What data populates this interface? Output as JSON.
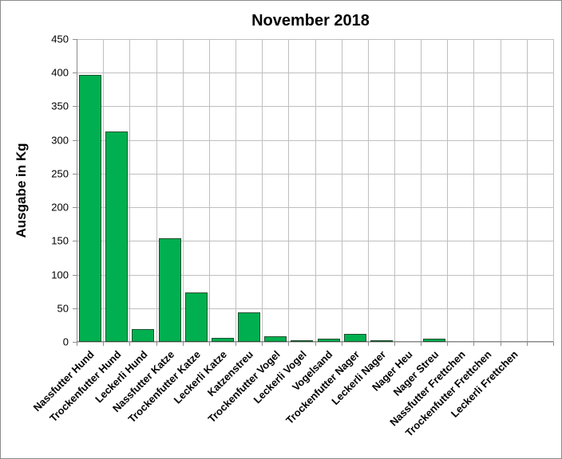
{
  "chart": {
    "title": "November 2018",
    "ylabel": "Ausgabe in Kg",
    "bar_color": "#00B050",
    "bar_border": "#1F4E2F",
    "grid_color": "#BFBFBF",
    "yticks": [
      "0",
      "50",
      "100",
      "150",
      "200",
      "250",
      "300",
      "350",
      "400",
      "450"
    ]
  },
  "chart_data": {
    "type": "bar",
    "title": "November 2018",
    "xlabel": "",
    "ylabel": "Ausgabe in Kg",
    "ylim": [
      0,
      450
    ],
    "yticks": [
      0,
      50,
      100,
      150,
      200,
      250,
      300,
      350,
      400,
      450
    ],
    "grid": true,
    "legend": null,
    "categories": [
      "Nassfutter Hund",
      "Trockenfutter Hund",
      "Leckerli Hund",
      "Nassfutter Katze",
      "Trockenfutter Katze",
      "Leckerli Katze",
      "Katzenstreu",
      "Trockenfutter Vogel",
      "Leckerli Vogel",
      "Vogelsand",
      "Trockenfutter Nager",
      "Leckerli Nager",
      "Nager Heu",
      "Nager Streu",
      "Nassfutter Frettchen",
      "Trockenfutter Frettchen",
      "Leckerli Frettchen"
    ],
    "values": [
      397,
      313,
      19,
      154,
      74,
      6,
      44,
      8,
      1,
      5,
      12,
      1,
      0,
      5,
      0,
      0,
      0
    ]
  }
}
